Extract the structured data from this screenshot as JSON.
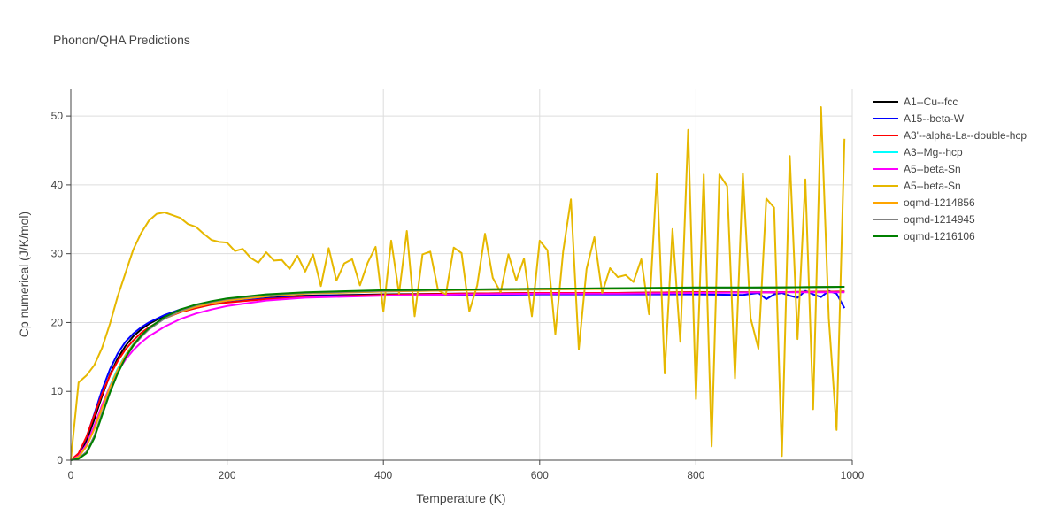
{
  "chart_data": {
    "type": "line",
    "title": "Phonon/QHA Predictions",
    "xlabel": "Temperature (K)",
    "ylabel": "Cp numerical (J/K/mol)",
    "xlim": [
      0,
      1000
    ],
    "ylim": [
      0,
      54
    ],
    "xticks": [
      0,
      200,
      400,
      600,
      800,
      1000
    ],
    "yticks": [
      0,
      10,
      20,
      30,
      40,
      50
    ],
    "grid": true,
    "legend_position": "top-right",
    "series": [
      {
        "name": "A1--Cu--fcc",
        "color": "#000000",
        "x": [
          0,
          10,
          20,
          30,
          40,
          50,
          60,
          70,
          80,
          90,
          100,
          120,
          140,
          160,
          180,
          200,
          250,
          300,
          400,
          500,
          600,
          700,
          800,
          900,
          990
        ],
        "y": [
          0,
          0.8,
          2.8,
          5.9,
          9.3,
          12.4,
          14.8,
          16.6,
          18.0,
          19.0,
          19.8,
          21.0,
          21.8,
          22.4,
          22.8,
          23.1,
          23.6,
          23.9,
          24.1,
          24.2,
          24.3,
          24.3,
          24.4,
          24.4,
          24.5
        ]
      },
      {
        "name": "A15--beta-W",
        "color": "#0000ff",
        "x": [
          0,
          10,
          20,
          30,
          40,
          50,
          60,
          70,
          80,
          90,
          100,
          120,
          140,
          160,
          180,
          200,
          250,
          300,
          400,
          500,
          600,
          700,
          800,
          860,
          880,
          890,
          900,
          910,
          920,
          930,
          940,
          950,
          960,
          970,
          980,
          990
        ],
        "y": [
          0,
          0.9,
          3.3,
          6.7,
          10.2,
          13.2,
          15.5,
          17.2,
          18.4,
          19.3,
          20.0,
          21.1,
          21.9,
          22.4,
          22.8,
          23.1,
          23.5,
          23.8,
          24.0,
          24.0,
          24.1,
          24.1,
          24.1,
          24.0,
          24.3,
          23.4,
          24.1,
          24.3,
          23.9,
          23.6,
          24.6,
          24.1,
          23.7,
          24.6,
          24.2,
          22.1
        ]
      },
      {
        "name": "A3'--alpha-La--double-hcp",
        "color": "#ff0000",
        "x": [
          0,
          10,
          20,
          30,
          40,
          50,
          60,
          70,
          80,
          90,
          100,
          120,
          140,
          160,
          180,
          200,
          250,
          300,
          400,
          500,
          600,
          700,
          800,
          900,
          990
        ],
        "y": [
          0,
          1.0,
          3.4,
          6.5,
          9.6,
          12.3,
          14.4,
          16.1,
          17.4,
          18.5,
          19.3,
          20.6,
          21.5,
          22.1,
          22.6,
          22.9,
          23.4,
          23.7,
          24.0,
          24.2,
          24.3,
          24.3,
          24.4,
          24.4,
          24.5
        ]
      },
      {
        "name": "A3--Mg--hcp",
        "color": "#00ffff",
        "x": [
          0,
          10,
          20,
          30,
          40,
          50,
          60,
          70,
          80,
          90,
          100,
          120,
          140,
          160,
          180,
          200,
          250,
          300,
          400,
          500,
          600,
          700,
          800,
          900,
          990
        ],
        "y": [
          0,
          0.5,
          2.0,
          4.6,
          7.8,
          10.8,
          13.3,
          15.3,
          16.9,
          18.1,
          19.1,
          20.6,
          21.6,
          22.3,
          22.8,
          23.2,
          23.8,
          24.2,
          24.5,
          24.7,
          24.8,
          24.9,
          25.0,
          25.1,
          25.2
        ]
      },
      {
        "name": "A5--beta-Sn",
        "color": "#ff00ff",
        "x": [
          0,
          10,
          20,
          30,
          40,
          50,
          60,
          70,
          80,
          90,
          100,
          120,
          140,
          160,
          180,
          200,
          250,
          300,
          400,
          500,
          600,
          700,
          800,
          900,
          990
        ],
        "y": [
          0,
          0.6,
          2.3,
          5.0,
          8.0,
          10.7,
          12.9,
          14.6,
          16.0,
          17.1,
          18.0,
          19.4,
          20.5,
          21.3,
          21.9,
          22.4,
          23.2,
          23.6,
          23.9,
          24.1,
          24.2,
          24.2,
          24.3,
          24.4,
          24.4
        ]
      },
      {
        "name": "A5--beta-Sn",
        "color": "#e6b800",
        "x": [
          0,
          10,
          20,
          30,
          40,
          50,
          60,
          70,
          80,
          90,
          100,
          110,
          120,
          130,
          140,
          150,
          160,
          170,
          180,
          190,
          200,
          210,
          220,
          230,
          240,
          250,
          260,
          270,
          280,
          290,
          300,
          310,
          320,
          330,
          340,
          350,
          360,
          370,
          380,
          390,
          400,
          410,
          420,
          430,
          440,
          450,
          460,
          470,
          480,
          490,
          500,
          510,
          520,
          530,
          540,
          550,
          560,
          570,
          580,
          590,
          600,
          610,
          620,
          630,
          640,
          650,
          660,
          670,
          680,
          690,
          700,
          710,
          720,
          730,
          740,
          750,
          760,
          770,
          780,
          790,
          800,
          810,
          820,
          830,
          840,
          850,
          860,
          870,
          880,
          890,
          900,
          910,
          920,
          930,
          940,
          950,
          960,
          970,
          980,
          990
        ],
        "y": [
          0,
          11.3,
          12.3,
          13.8,
          16.3,
          19.8,
          23.8,
          27.2,
          30.6,
          33.0,
          34.8,
          35.8,
          36.0,
          35.6,
          35.2,
          34.3,
          33.9,
          32.9,
          32.0,
          31.7,
          31.6,
          30.4,
          30.7,
          29.4,
          28.7,
          30.2,
          29.0,
          29.1,
          27.8,
          29.7,
          27.4,
          29.9,
          25.3,
          30.8,
          26.1,
          28.6,
          29.2,
          25.4,
          28.7,
          31.0,
          21.6,
          31.9,
          24.2,
          33.3,
          20.9,
          29.9,
          30.3,
          24.7,
          24.1,
          30.9,
          30.1,
          21.6,
          25.4,
          32.9,
          26.5,
          24.4,
          29.9,
          26.1,
          29.3,
          20.9,
          31.9,
          30.5,
          18.3,
          30.3,
          37.9,
          16.1,
          27.8,
          32.4,
          24.3,
          27.9,
          26.6,
          26.9,
          25.9,
          29.2,
          21.2,
          41.6,
          12.6,
          33.6,
          17.2,
          48.0,
          8.9,
          41.5,
          2.0,
          41.5,
          39.8,
          11.9,
          41.7,
          20.6,
          16.2,
          38.0,
          36.7,
          0.6,
          44.2,
          17.6,
          40.8,
          7.4,
          51.3,
          20.6,
          4.4,
          46.7
        ]
      },
      {
        "name": "oqmd-1214856",
        "color": "#ffa500",
        "x": [
          0,
          10,
          20,
          30,
          40,
          50,
          60,
          70,
          80,
          90,
          100,
          120,
          140,
          160,
          180,
          200,
          250,
          300,
          400,
          500,
          600,
          700,
          800,
          900,
          990
        ],
        "y": [
          0,
          0.5,
          2.0,
          4.5,
          7.6,
          10.6,
          13.1,
          15.2,
          16.8,
          18.1,
          19.1,
          20.6,
          21.6,
          22.3,
          22.8,
          23.2,
          23.8,
          24.2,
          24.5,
          24.7,
          24.8,
          24.9,
          25.0,
          25.1,
          25.2
        ]
      },
      {
        "name": "oqmd-1214945",
        "color": "#808080",
        "x": [
          0,
          10,
          20,
          30,
          40,
          50,
          60,
          70,
          80,
          90,
          100,
          120,
          140,
          160,
          180,
          200,
          250,
          300,
          400,
          500,
          600,
          700,
          800,
          900,
          990
        ],
        "y": [
          0,
          0.3,
          1.2,
          3.5,
          6.8,
          10.0,
          12.7,
          14.9,
          16.6,
          17.9,
          19.0,
          20.6,
          21.7,
          22.5,
          23.0,
          23.4,
          24.0,
          24.3,
          24.6,
          24.8,
          24.9,
          25.0,
          25.0,
          25.1,
          25.2
        ]
      },
      {
        "name": "oqmd-1216106",
        "color": "#008000",
        "x": [
          0,
          10,
          20,
          30,
          40,
          50,
          60,
          70,
          80,
          90,
          100,
          120,
          140,
          160,
          180,
          200,
          250,
          300,
          400,
          500,
          600,
          700,
          800,
          900,
          990
        ],
        "y": [
          0,
          0.2,
          1.0,
          3.2,
          6.5,
          9.8,
          12.6,
          14.9,
          16.7,
          18.1,
          19.2,
          20.8,
          21.9,
          22.6,
          23.1,
          23.5,
          24.1,
          24.4,
          24.7,
          24.8,
          24.9,
          25.0,
          25.1,
          25.1,
          25.2
        ]
      }
    ]
  }
}
